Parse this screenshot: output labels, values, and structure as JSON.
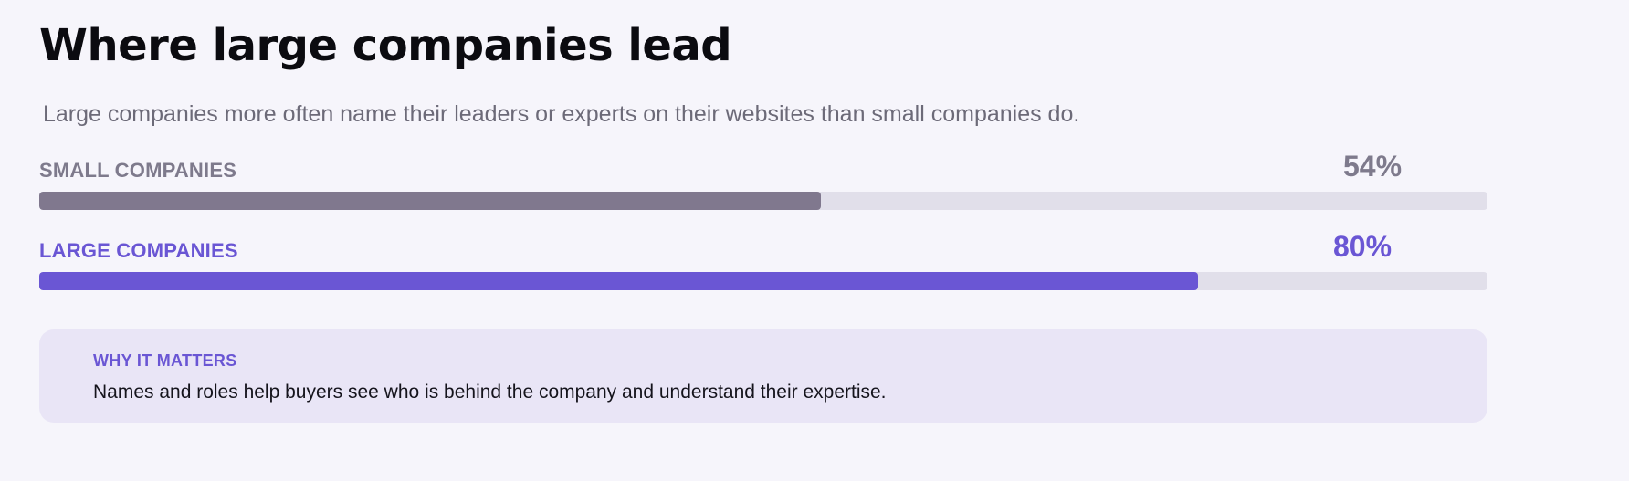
{
  "title": "Where large companies lead",
  "subtitle": "Large companies more often name their leaders or experts on their websites than small companies do.",
  "colors": {
    "small": "#80788e",
    "large": "#6a56d4",
    "track": "#e1dfea",
    "callout_bg": "#e9e5f6"
  },
  "chart_data": {
    "type": "bar",
    "orientation": "horizontal",
    "categories": [
      "SMALL COMPANIES",
      "LARGE COMPANIES"
    ],
    "values": [
      54,
      80
    ],
    "value_labels": [
      "54%",
      "80%"
    ],
    "xlim": [
      0,
      100
    ],
    "title": "Where large companies lead",
    "subtitle": "Large companies more often name their leaders or experts on their websites than small companies do."
  },
  "callout": {
    "heading": "WHY IT MATTERS",
    "text": "Names and roles help buyers see who is behind the company and understand their expertise."
  }
}
